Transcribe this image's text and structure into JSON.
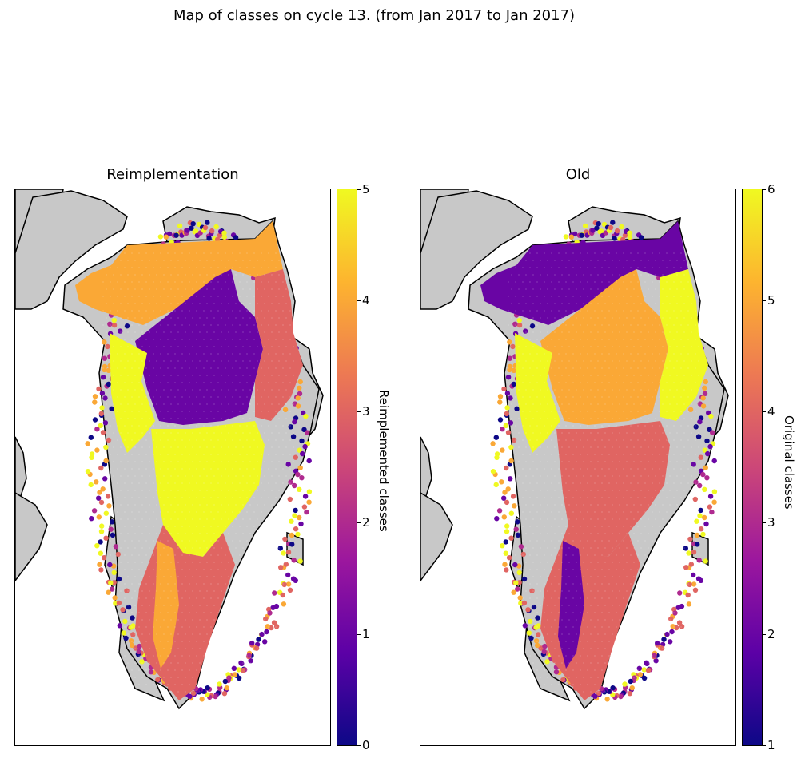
{
  "title": "Map of classes on cycle 13. (from Jan 2017 to Jan 2017)",
  "colormap": {
    "name": "plasma",
    "stops": [
      "#0d0887",
      "#5c01a6",
      "#9c179e",
      "#cc4778",
      "#ed7953",
      "#fdb42f",
      "#f0f921"
    ]
  },
  "land_color": "#c8c8c8",
  "panels": [
    {
      "title": "Reimplementation",
      "colorbar": {
        "label": "Reimplemented classes",
        "ticks": [
          "0",
          "1",
          "2",
          "3",
          "4",
          "5"
        ],
        "vmin": 0,
        "vmax": 5
      },
      "regions": [
        {
          "name": "north-plateau",
          "value": 4
        },
        {
          "name": "central-north",
          "value": 1
        },
        {
          "name": "central-south",
          "value": 5
        },
        {
          "name": "south-interior",
          "value": 3
        },
        {
          "name": "south-channel",
          "value": 4
        },
        {
          "name": "west-strip",
          "value": 5
        },
        {
          "name": "east-strip",
          "value": 3
        }
      ]
    },
    {
      "title": "Old",
      "colorbar": {
        "label": "Original classes",
        "ticks": [
          "1",
          "2",
          "3",
          "4",
          "5",
          "6"
        ],
        "vmin": 1,
        "vmax": 6
      },
      "regions": [
        {
          "name": "north-plateau",
          "value": 2
        },
        {
          "name": "central-north",
          "value": 5
        },
        {
          "name": "central-south",
          "value": 4
        },
        {
          "name": "south-interior",
          "value": 4
        },
        {
          "name": "south-channel",
          "value": 2
        },
        {
          "name": "west-strip",
          "value": 6
        },
        {
          "name": "east-strip",
          "value": 6
        }
      ]
    }
  ]
}
